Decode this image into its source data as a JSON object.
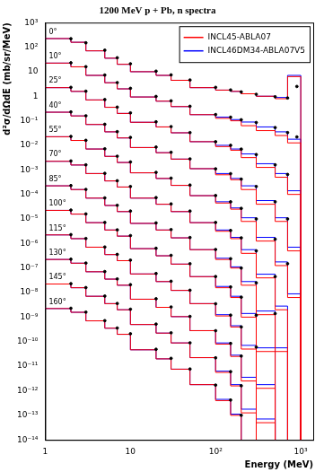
{
  "chart_data": {
    "type": "line",
    "title": "1200 MeV p + Pb, n spectra",
    "x_label": "Energy (MeV)",
    "y_label": "d²σ/dΩdE (mb/sr/MeV)",
    "log": true,
    "grid": false,
    "legend": "upper right",
    "xlim": [
      1,
      1400
    ],
    "ylim": [
      1e-14,
      1000
    ],
    "xticks": [
      1,
      10,
      {
        "value": 100,
        "label": "10²"
      },
      {
        "value": 1000,
        "label": "10³"
      }
    ],
    "yticks": [
      {
        "value": 1e-14,
        "label": "10⁻¹⁴"
      },
      {
        "value": 1e-13,
        "label": "10⁻¹³"
      },
      {
        "value": 1e-12,
        "label": "10⁻¹²"
      },
      {
        "value": 1e-11,
        "label": "10⁻¹¹"
      },
      {
        "value": 1e-10,
        "label": "10⁻¹⁰"
      },
      {
        "value": 1e-09,
        "label": "10⁻⁹"
      },
      {
        "value": 1e-08,
        "label": "10⁻⁸"
      },
      {
        "value": 1e-07,
        "label": "10⁻⁷"
      },
      {
        "value": 1e-06,
        "label": "10⁻⁶"
      },
      {
        "value": 1e-05,
        "label": "10⁻⁵"
      },
      {
        "value": 0.0001,
        "label": "10⁻⁴"
      },
      {
        "value": 0.001,
        "label": "10⁻³"
      },
      {
        "value": 0.01,
        "label": "10⁻²"
      },
      {
        "value": 0.1,
        "label": "10⁻¹"
      },
      1,
      10,
      {
        "value": 100,
        "label": "10²"
      },
      {
        "value": 1000,
        "label": "10³"
      }
    ],
    "angle_labels": [
      "0°",
      "10°",
      "25°",
      "40°",
      "55°",
      "70°",
      "85°",
      "100°",
      "115°",
      "130°",
      "145°",
      "160°"
    ],
    "x": [
      1,
      2,
      3,
      5,
      7,
      10,
      20,
      30,
      50,
      100,
      150,
      200,
      300,
      500,
      700,
      1000,
      1200
    ],
    "series": [
      {
        "name": "INCL45-ABLA07",
        "color": "#ff0000",
        "line_style": "steps",
        "values": [
          [
            251,
            224,
            158,
            70.8,
            35.5,
            20,
            10,
            7.08,
            4.47,
            2.24,
            1.78,
            1.58,
            1.26,
            1.0,
            0.794,
            6.31,
            1e-15
          ],
          [
            25.1,
            22.4,
            15.8,
            7.08,
            3.55,
            2.0,
            0.933,
            0.631,
            0.38,
            0.178,
            0.126,
            0.1,
            0.0631,
            0.0398,
            0.0251,
            0.0126,
            1e-15
          ],
          [
            2.51,
            2.24,
            1.58,
            0.708,
            0.355,
            0.2,
            0.0871,
            0.0562,
            0.0324,
            0.0141,
            0.00891,
            0.00631,
            0.00316,
            0.00126,
            0.000501,
            0.0001,
            1e-15
          ],
          [
            0.251,
            0.224,
            0.158,
            0.0708,
            0.0355,
            0.02,
            0.00813,
            0.00501,
            0.00275,
            0.00112,
            0.000631,
            0.000398,
            0.000158,
            3.98e-05,
            7.94e-06,
            5.01e-07,
            1e-15
          ],
          [
            0.0251,
            0.0224,
            0.0158,
            0.00708,
            0.00355,
            0.002,
            0.000759,
            0.000447,
            0.000234,
            8.91e-05,
            4.47e-05,
            2.51e-05,
            7.94e-06,
            1.26e-06,
            1.26e-07,
            6.31e-09,
            1e-15
          ],
          [
            0.00251,
            0.00224,
            0.00158,
            0.000708,
            0.000355,
            0.0002,
            7.08e-05,
            3.98e-05,
            2e-05,
            7.08e-06,
            3.16e-06,
            1.58e-06,
            3.98e-07,
            3.98e-08,
            2e-09,
            1e-15,
            null
          ],
          [
            0.000251,
            0.000224,
            0.000158,
            7.08e-05,
            3.55e-05,
            2e-05,
            6.61e-06,
            3.55e-06,
            1.7e-06,
            5.62e-07,
            2.24e-07,
            1e-07,
            2e-08,
            1.26e-09,
            3.98e-11,
            1e-15,
            null
          ],
          [
            2.51e-05,
            2.24e-05,
            1.58e-05,
            7.08e-06,
            3.55e-06,
            2e-06,
            6.17e-07,
            3.16e-07,
            1.45e-07,
            4.47e-08,
            1.58e-08,
            6.31e-09,
            1e-09,
            3.98e-11,
            1e-15,
            null,
            null
          ],
          [
            2.51e-06,
            2.24e-06,
            1.58e-06,
            7.08e-07,
            3.55e-07,
            2e-07,
            5.75e-08,
            2.82e-08,
            1.23e-08,
            3.55e-09,
            1.12e-09,
            3.98e-10,
            5.01e-11,
            1.26e-12,
            1e-15,
            null,
            null
          ],
          [
            2.51e-07,
            2.24e-07,
            1.58e-07,
            7.08e-08,
            3.55e-08,
            2e-08,
            5.37e-09,
            2.51e-09,
            1.05e-09,
            2.82e-10,
            7.94e-11,
            2.51e-11,
            2.51e-12,
            5.01e-14,
            1e-15,
            null,
            null
          ],
          [
            2.51e-08,
            2.24e-08,
            1.58e-08,
            7.08e-09,
            3.55e-09,
            2e-09,
            5.01e-10,
            2.24e-10,
            8.91e-11,
            2.24e-11,
            5.62e-12,
            1.58e-12,
            1.26e-13,
            1.58e-15,
            null,
            null,
            null
          ],
          [
            2.51e-09,
            2.24e-09,
            1.58e-09,
            7.08e-10,
            3.55e-10,
            2e-10,
            4.68e-11,
            2e-11,
            7.59e-12,
            1.78e-12,
            3.98e-13,
            1e-13,
            6.31e-15,
            6.31e-17,
            null,
            null,
            null
          ]
        ]
      },
      {
        "name": "INCL46DM34-ABLA07V5",
        "color": "#0000ff",
        "line_style": "steps",
        "values": [
          [
            251,
            224,
            158,
            70.8,
            35.5,
            20,
            10,
            7.08,
            4.47,
            2.24,
            1.78,
            1.58,
            1.26,
            1.0,
            0.891,
            7.08,
            1e-15
          ],
          [
            25.1,
            22.4,
            15.8,
            7.08,
            3.55,
            2.0,
            0.933,
            0.631,
            0.38,
            0.178,
            0.141,
            0.112,
            0.0891,
            0.0562,
            0.0355,
            0.0178,
            1e-15
          ],
          [
            2.51,
            2.24,
            1.58,
            0.708,
            0.355,
            0.2,
            0.0871,
            0.0562,
            0.0324,
            0.0141,
            0.01,
            0.00708,
            0.00447,
            0.00178,
            0.000708,
            0.000141,
            1e-15
          ],
          [
            0.251,
            0.224,
            0.158,
            0.0708,
            0.0355,
            0.02,
            0.00813,
            0.00501,
            0.00275,
            0.00112,
            0.000708,
            0.000447,
            0.000224,
            5.62e-05,
            1.12e-05,
            7.08e-07,
            1e-15
          ],
          [
            0.0251,
            0.0224,
            0.0158,
            0.00708,
            0.00355,
            0.002,
            0.000759,
            0.000447,
            0.000234,
            8.91e-05,
            5.01e-05,
            2.82e-05,
            1.12e-05,
            1.78e-06,
            1.78e-07,
            8.91e-09,
            1e-15
          ],
          [
            0.00251,
            0.00224,
            0.00158,
            0.000708,
            0.000355,
            0.0002,
            7.08e-05,
            3.98e-05,
            2e-05,
            7.08e-06,
            3.55e-06,
            1.78e-06,
            5.62e-07,
            5.62e-08,
            2.82e-09,
            1e-15,
            null
          ],
          [
            0.000251,
            0.000224,
            0.000158,
            7.08e-05,
            3.55e-05,
            2e-05,
            6.61e-06,
            3.55e-06,
            1.7e-06,
            5.62e-07,
            2.51e-07,
            1.12e-07,
            2.82e-08,
            1.78e-09,
            5.62e-11,
            1e-15,
            null
          ],
          [
            2.51e-05,
            2.24e-05,
            1.58e-05,
            7.08e-06,
            3.55e-06,
            2e-06,
            6.17e-07,
            3.16e-07,
            1.45e-07,
            4.47e-08,
            1.78e-08,
            7.08e-09,
            1.41e-09,
            5.62e-11,
            1e-15,
            null,
            null
          ],
          [
            2.51e-06,
            2.24e-06,
            1.58e-06,
            7.08e-07,
            3.55e-07,
            2e-07,
            5.75e-08,
            2.82e-08,
            1.23e-08,
            3.55e-09,
            1.26e-09,
            4.47e-10,
            7.08e-11,
            1.78e-12,
            1e-15,
            null,
            null
          ],
          [
            2.51e-07,
            2.24e-07,
            1.58e-07,
            7.08e-08,
            3.55e-08,
            2e-08,
            5.37e-09,
            2.51e-09,
            1.05e-09,
            2.82e-10,
            8.91e-11,
            2.82e-11,
            3.55e-12,
            7.08e-14,
            1e-15,
            null,
            null
          ],
          [
            2.51e-08,
            2.24e-08,
            1.58e-08,
            7.08e-09,
            3.55e-09,
            2e-09,
            5.01e-10,
            2.24e-10,
            8.91e-11,
            2.24e-11,
            6.31e-12,
            1.78e-12,
            1.78e-13,
            2.24e-15,
            null,
            null,
            null
          ],
          [
            2.51e-09,
            2.24e-09,
            1.58e-09,
            7.08e-10,
            3.55e-10,
            2e-10,
            4.68e-11,
            2e-11,
            7.59e-12,
            1.78e-12,
            4.47e-13,
            1.12e-13,
            8.91e-15,
            8.91e-17,
            null,
            null,
            null
          ]
        ]
      }
    ],
    "points": {
      "color": "#000000",
      "marker": "circle",
      "x": [
        2,
        3,
        5,
        7,
        10,
        20,
        30,
        50,
        100,
        150,
        200,
        300,
        500,
        700,
        900
      ],
      "values": [
        [
          220,
          150,
          75,
          37,
          21,
          10.5,
          7.4,
          4.6,
          2.3,
          1.8,
          1.5,
          1.2,
          0.95,
          0.85,
          2.5
        ],
        [
          23,
          16,
          7.3,
          3.6,
          2.1,
          0.98,
          0.65,
          0.39,
          0.18,
          0.14,
          0.11,
          0.085,
          0.053,
          0.033,
          0.022
        ],
        [
          2.3,
          1.6,
          0.73,
          0.36,
          0.21,
          0.091,
          0.058,
          0.033,
          0.014,
          0.01,
          0.007,
          0.0042,
          0.0016,
          0.00065,
          null
        ],
        [
          0.23,
          0.16,
          0.072,
          0.036,
          0.021,
          0.0085,
          0.0052,
          0.0028,
          0.0011,
          0.0007,
          0.00042,
          0.00021,
          5e-05,
          1e-05,
          null
        ],
        [
          0.023,
          0.016,
          0.0072,
          0.0036,
          0.0021,
          0.00079,
          0.00046,
          0.00024,
          9e-05,
          5e-05,
          2.7e-05,
          1e-05,
          1.5e-06,
          1.5e-07,
          null
        ],
        [
          0.0023,
          0.0016,
          0.00072,
          0.00036,
          0.00021,
          7.4e-05,
          4.1e-05,
          2.1e-05,
          7.2e-06,
          3.4e-06,
          1.7e-06,
          5e-07,
          4.5e-08,
          null,
          null
        ],
        [
          0.00023,
          0.00016,
          7.2e-05,
          3.6e-05,
          2.1e-05,
          6.9e-06,
          3.7e-06,
          1.75e-06,
          5.7e-07,
          2.4e-07,
          1e-07,
          2.5e-08,
          1.4e-09,
          null,
          null
        ],
        [
          2.3e-05,
          1.6e-05,
          7.2e-06,
          3.6e-06,
          2.1e-06,
          6.4e-07,
          3.3e-07,
          1.5e-07,
          4.5e-08,
          1.7e-08,
          6.5e-09,
          1.2e-09,
          null,
          null,
          null
        ],
        [
          2.3e-06,
          1.6e-06,
          7.2e-07,
          3.6e-07,
          2.1e-07,
          6e-08,
          2.9e-08,
          1.25e-08,
          3.5e-09,
          1.2e-09,
          4e-10,
          6e-11,
          null,
          null,
          null
        ],
        [
          2.3e-07,
          1.6e-07,
          7.2e-08,
          3.6e-08,
          2.1e-08,
          5.6e-09,
          2.6e-09,
          1.07e-09,
          2.8e-10,
          8.5e-11,
          2.6e-11,
          null,
          null,
          null,
          null
        ],
        [
          2.3e-08,
          1.6e-08,
          7.2e-09,
          3.6e-09,
          2.1e-09,
          5.2e-10,
          2.3e-10,
          9e-11,
          2.2e-11,
          6e-12,
          1.6e-12,
          null,
          null,
          null,
          null
        ],
        [
          2.3e-09,
          1.6e-09,
          7.2e-10,
          3.6e-10,
          2.1e-10,
          4.9e-11,
          2.1e-11,
          7.7e-12,
          1.7e-12,
          4.2e-13,
          1e-13,
          null,
          null,
          null,
          null
        ]
      ]
    }
  }
}
